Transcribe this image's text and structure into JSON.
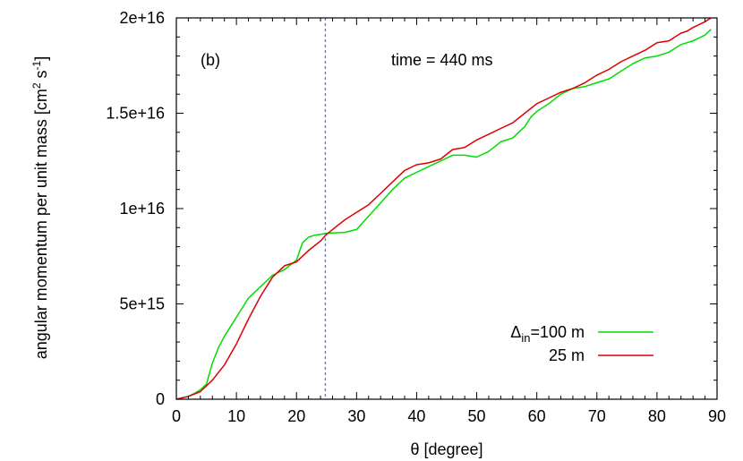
{
  "chart_data": {
    "type": "line",
    "title": "",
    "panel_label": "(b)",
    "annotation": "time = 440 ms",
    "xlabel": "θ [degree]",
    "ylabel": {
      "prefix": "angular momentum per unit mass [cm",
      "sup1": "2",
      "mid": " s",
      "sup2": "-1",
      "suffix": "]"
    },
    "xlim": [
      0,
      90
    ],
    "ylim": [
      0,
      2e+16
    ],
    "x_ticks": [
      {
        "value": 0,
        "label": "0"
      },
      {
        "value": 10,
        "label": "10"
      },
      {
        "value": 20,
        "label": "20"
      },
      {
        "value": 30,
        "label": "30"
      },
      {
        "value": 40,
        "label": "40"
      },
      {
        "value": 50,
        "label": "50"
      },
      {
        "value": 60,
        "label": "60"
      },
      {
        "value": 70,
        "label": "70"
      },
      {
        "value": 80,
        "label": "80"
      },
      {
        "value": 90,
        "label": "90"
      }
    ],
    "y_ticks": [
      {
        "value": 0,
        "label": "0"
      },
      {
        "value": 5000000000000000.0,
        "label": "5e+15"
      },
      {
        "value": 1e+16,
        "label": "1e+16"
      },
      {
        "value": 1.5e+16,
        "label": "1.5e+16"
      },
      {
        "value": 2e+16,
        "label": "2e+16"
      }
    ],
    "vline": {
      "x": 24.8,
      "color": "#6666ff"
    },
    "legend_position": "bottom-right",
    "legend": {
      "delta_symbol": "Δ",
      "delta_sub": "in",
      "entry1_value": "=100 m",
      "entry2": "25 m"
    },
    "series": [
      {
        "color": "#00dd00",
        "x": [
          0,
          2,
          3,
          4,
          5,
          6,
          7,
          8,
          10,
          12,
          14,
          16,
          18,
          20,
          21,
          22,
          23,
          24,
          25,
          26,
          28,
          30,
          32,
          34,
          36,
          38,
          40,
          42,
          44,
          46,
          48,
          50,
          52,
          54,
          56,
          58,
          59,
          60,
          62,
          64,
          66,
          68,
          70,
          72,
          74,
          76,
          78,
          80,
          82,
          84,
          85,
          86,
          88,
          89
        ],
        "y": [
          0,
          150000000000000.0,
          300000000000000.0,
          500000000000000.0,
          800000000000000.0,
          1900000000000000.0,
          2700000000000000.0,
          3300000000000000.0,
          4300000000000000.0,
          5300000000000000.0,
          5900000000000000.0,
          6500000000000000.0,
          6800000000000000.0,
          7300000000000000.0,
          8200000000000000.0,
          8500000000000000.0,
          8600000000000000.0,
          8650000000000000.0,
          8700000000000000.0,
          8720000000000000.0,
          8750000000000000.0,
          8900000000000000.0,
          9600000000000000.0,
          1.03e+16,
          1.1e+16,
          1.16e+16,
          1.19e+16,
          1.22e+16,
          1.25e+16,
          1.28e+16,
          1.28e+16,
          1.27e+16,
          1.3e+16,
          1.35e+16,
          1.37e+16,
          1.43e+16,
          1.48e+16,
          1.51e+16,
          1.55e+16,
          1.6e+16,
          1.63e+16,
          1.64e+16,
          1.66e+16,
          1.68e+16,
          1.72e+16,
          1.76e+16,
          1.79e+16,
          1.8e+16,
          1.82e+16,
          1.86e+16,
          1.87e+16,
          1.88e+16,
          1.91e+16,
          1.94e+16
        ]
      },
      {
        "color": "#dd0000",
        "x": [
          0,
          2,
          4,
          5,
          6,
          8,
          10,
          12,
          14,
          16,
          18,
          20,
          22,
          24,
          25,
          26,
          28,
          30,
          32,
          34,
          36,
          38,
          40,
          42,
          44,
          46,
          48,
          50,
          52,
          54,
          56,
          58,
          60,
          62,
          64,
          66,
          68,
          70,
          72,
          74,
          76,
          78,
          80,
          82,
          84,
          85,
          86,
          88,
          89
        ],
        "y": [
          0,
          150000000000000.0,
          400000000000000.0,
          700000000000000.0,
          1000000000000000.0,
          1800000000000000.0,
          2900000000000000.0,
          4200000000000000.0,
          5400000000000000.0,
          6400000000000000.0,
          7000000000000000.0,
          7200000000000000.0,
          7800000000000000.0,
          8300000000000000.0,
          8650000000000000.0,
          8900000000000000.0,
          9400000000000000.0,
          9800000000000000.0,
          1.02e+16,
          1.08e+16,
          1.14e+16,
          1.2e+16,
          1.23e+16,
          1.24e+16,
          1.26e+16,
          1.31e+16,
          1.32e+16,
          1.36e+16,
          1.39e+16,
          1.42e+16,
          1.45e+16,
          1.5e+16,
          1.55e+16,
          1.58e+16,
          1.61e+16,
          1.63e+16,
          1.66e+16,
          1.7e+16,
          1.73e+16,
          1.77e+16,
          1.8e+16,
          1.83e+16,
          1.87e+16,
          1.88e+16,
          1.92e+16,
          1.93e+16,
          1.95e+16,
          1.98e+16,
          2e+16
        ]
      }
    ]
  }
}
